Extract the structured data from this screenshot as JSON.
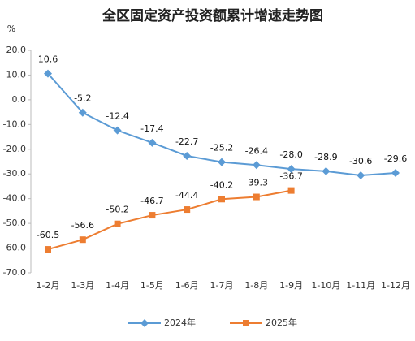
{
  "chart_data": {
    "type": "line",
    "title": "全区固定资产投资额累计增速走势图",
    "unit": "%",
    "categories": [
      "1-2月",
      "1-3月",
      "1-4月",
      "1-5月",
      "1-6月",
      "1-7月",
      "1-8月",
      "1-9月",
      "1-10月",
      "1-11月",
      "1-12月"
    ],
    "series": [
      {
        "name": "2024年",
        "color": "#5b9bd5",
        "marker": "diamond",
        "values": [
          10.6,
          -5.2,
          -12.4,
          -17.4,
          -22.7,
          -25.2,
          -26.4,
          -28.0,
          -28.9,
          -30.6,
          -29.6
        ],
        "value_labels": [
          "10.6",
          "-5.2",
          "-12.4",
          "-17.4",
          "-22.7",
          "-25.2",
          "-26.4",
          "-28.0",
          "-28.9",
          "-30.6",
          "-29.6"
        ]
      },
      {
        "name": "2025年",
        "color": "#ed7d31",
        "marker": "square",
        "values": [
          -60.5,
          -56.6,
          -50.2,
          -46.7,
          -44.4,
          -40.2,
          -39.3,
          -36.7,
          null,
          null,
          null
        ],
        "value_labels": [
          "-60.5",
          "-56.6",
          "-50.2",
          "-46.7",
          "-44.4",
          "-40.2",
          "-39.3",
          "-36.7",
          null,
          null,
          null
        ]
      }
    ],
    "ylim": [
      -70,
      20
    ],
    "yticks": [
      {
        "value": 20,
        "label": "20.0"
      },
      {
        "value": 10,
        "label": "10.0"
      },
      {
        "value": 0,
        "label": "0.0"
      },
      {
        "value": -10,
        "label": "-10.0"
      },
      {
        "value": -20,
        "label": "-20.0"
      },
      {
        "value": -30,
        "label": "-30.0"
      },
      {
        "value": -40,
        "label": "-40.0"
      },
      {
        "value": -50,
        "label": "-50.0"
      },
      {
        "value": -60,
        "label": "-60.0"
      },
      {
        "value": -70,
        "label": "-70.0"
      }
    ],
    "grid": false,
    "legend": "bottom"
  }
}
